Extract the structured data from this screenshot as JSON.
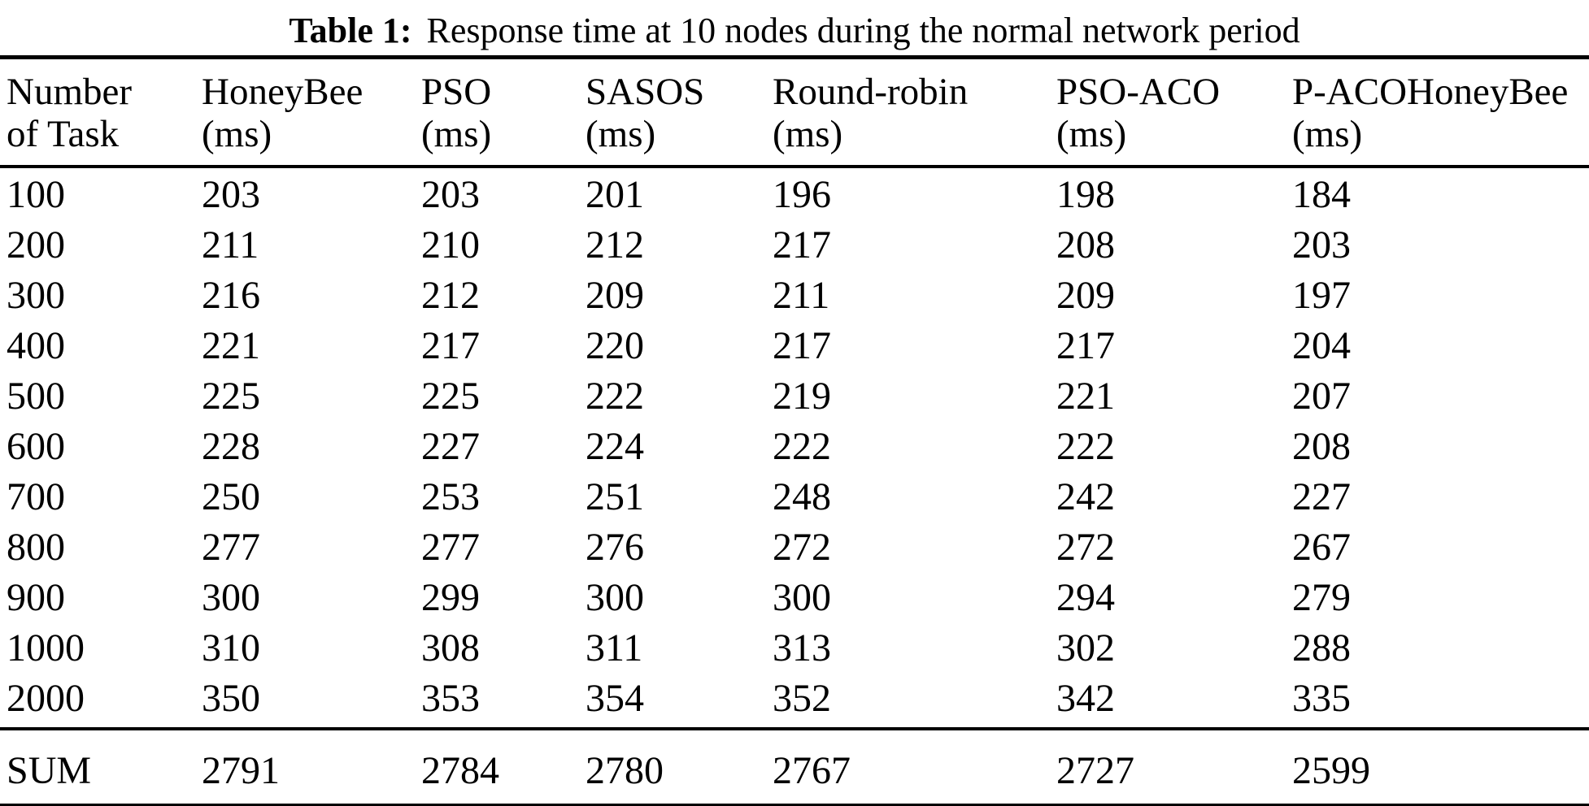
{
  "caption": {
    "label": "Table 1:",
    "text": "Response time at 10 nodes during the normal network period"
  },
  "table": {
    "headers": [
      {
        "line1": "Number",
        "line2": "of Task"
      },
      {
        "line1": "HoneyBee",
        "line2": "(ms)"
      },
      {
        "line1": "PSO",
        "line2": "(ms)"
      },
      {
        "line1": "SASOS",
        "line2": "(ms)"
      },
      {
        "line1": "Round-robin",
        "line2": "(ms)"
      },
      {
        "line1": "PSO-ACO",
        "line2": "(ms)"
      },
      {
        "line1": "P-ACOHoneyBee",
        "line2": "(ms)"
      }
    ],
    "rows": [
      [
        "100",
        "203",
        "203",
        "201",
        "196",
        "198",
        "184"
      ],
      [
        "200",
        "211",
        "210",
        "212",
        "217",
        "208",
        "203"
      ],
      [
        "300",
        "216",
        "212",
        "209",
        "211",
        "209",
        "197"
      ],
      [
        "400",
        "221",
        "217",
        "220",
        "217",
        "217",
        "204"
      ],
      [
        "500",
        "225",
        "225",
        "222",
        "219",
        "221",
        "207"
      ],
      [
        "600",
        "228",
        "227",
        "224",
        "222",
        "222",
        "208"
      ],
      [
        "700",
        "250",
        "253",
        "251",
        "248",
        "242",
        "227"
      ],
      [
        "800",
        "277",
        "277",
        "276",
        "272",
        "272",
        "267"
      ],
      [
        "900",
        "300",
        "299",
        "300",
        "300",
        "294",
        "279"
      ],
      [
        "1000",
        "310",
        "308",
        "311",
        "313",
        "302",
        "288"
      ],
      [
        "2000",
        "350",
        "353",
        "354",
        "352",
        "342",
        "335"
      ]
    ],
    "footer": [
      "SUM",
      "2791",
      "2784",
      "2780",
      "2767",
      "2727",
      "2599"
    ]
  },
  "chart_data": {
    "type": "table",
    "title": "Table 1: Response time at 10 nodes during the normal network period",
    "columns": [
      "Number of Task",
      "HoneyBee (ms)",
      "PSO (ms)",
      "SASOS (ms)",
      "Round-robin (ms)",
      "PSO-ACO (ms)",
      "P-ACOHoneyBee (ms)"
    ],
    "rows": [
      [
        100,
        203,
        203,
        201,
        196,
        198,
        184
      ],
      [
        200,
        211,
        210,
        212,
        217,
        208,
        203
      ],
      [
        300,
        216,
        212,
        209,
        211,
        209,
        197
      ],
      [
        400,
        221,
        217,
        220,
        217,
        217,
        204
      ],
      [
        500,
        225,
        225,
        222,
        219,
        221,
        207
      ],
      [
        600,
        228,
        227,
        224,
        222,
        222,
        208
      ],
      [
        700,
        250,
        253,
        251,
        248,
        242,
        227
      ],
      [
        800,
        277,
        277,
        276,
        272,
        272,
        267
      ],
      [
        900,
        300,
        299,
        300,
        300,
        294,
        279
      ],
      [
        1000,
        310,
        308,
        311,
        313,
        302,
        288
      ],
      [
        2000,
        350,
        353,
        354,
        352,
        342,
        335
      ]
    ],
    "sum_row": [
      "SUM",
      2791,
      2784,
      2780,
      2767,
      2727,
      2599
    ]
  }
}
